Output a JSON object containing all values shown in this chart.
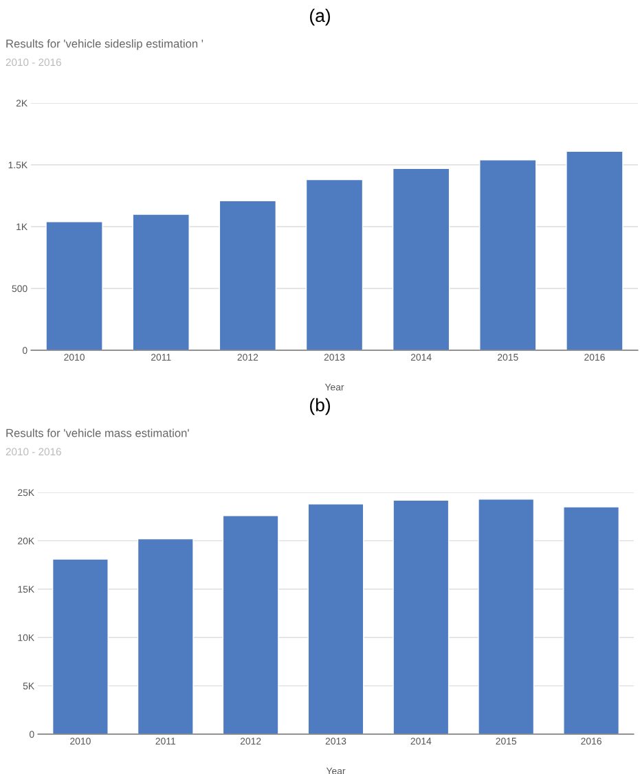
{
  "chart_data": [
    {
      "type": "bar",
      "annotations": [
        "(a)"
      ],
      "title": "Results for 'vehicle sideslip estimation '",
      "subtitle": "2010 - 2016",
      "xlabel": "Year",
      "categories": [
        "2010",
        "2011",
        "2012",
        "2013",
        "2014",
        "2015",
        "2016"
      ],
      "series": [
        {
          "color": "#4f7bc0",
          "values": [
            1040,
            1100,
            1210,
            1380,
            1470,
            1540,
            1610
          ]
        }
      ],
      "ylim": [
        0,
        2000
      ],
      "yticks": [
        0,
        500,
        {
          "value": 1000,
          "label": "1K"
        },
        {
          "value": 1500,
          "label": "1.5K"
        },
        {
          "value": 2000,
          "label": "2K"
        }
      ],
      "grid": "y",
      "legend": false
    },
    {
      "type": "bar",
      "annotations": [
        "(b)"
      ],
      "title": "Results for 'vehicle mass estimation'",
      "subtitle": "2010 - 2016",
      "xlabel": "Year",
      "categories": [
        "2010",
        "2011",
        "2012",
        "2013",
        "2014",
        "2015",
        "2016"
      ],
      "series": [
        {
          "color": "#4f7bc0",
          "values": [
            18100,
            20200,
            22600,
            23800,
            24200,
            24300,
            23500
          ]
        }
      ],
      "ylim": [
        0,
        25000
      ],
      "yticks": [
        0,
        {
          "value": 5000,
          "label": "5K"
        },
        {
          "value": 10000,
          "label": "10K"
        },
        {
          "value": 15000,
          "label": "15K"
        },
        {
          "value": 20000,
          "label": "20K"
        },
        {
          "value": 25000,
          "label": "25K"
        }
      ],
      "grid": "y",
      "legend": false
    }
  ]
}
